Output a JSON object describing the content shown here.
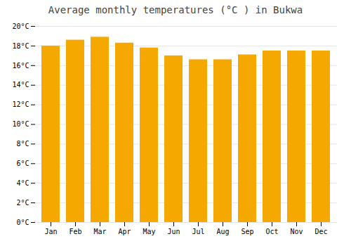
{
  "chart_data": {
    "type": "bar",
    "title": "Average monthly temperatures (°C ) in Bukwa",
    "categories": [
      "Jan",
      "Feb",
      "Mar",
      "Apr",
      "May",
      "Jun",
      "Jul",
      "Aug",
      "Sep",
      "Oct",
      "Nov",
      "Dec"
    ],
    "values": [
      18.0,
      18.6,
      18.9,
      18.3,
      17.8,
      17.0,
      16.6,
      16.6,
      17.1,
      17.5,
      17.5,
      17.5
    ],
    "color": "#F5A800",
    "ylim": [
      0,
      20
    ],
    "yticks": [
      {
        "value": 0,
        "label": "0°C"
      },
      {
        "value": 2,
        "label": "2°C"
      },
      {
        "value": 4,
        "label": "4°C"
      },
      {
        "value": 6,
        "label": "6°C"
      },
      {
        "value": 8,
        "label": "8°C"
      },
      {
        "value": 10,
        "label": "10°C"
      },
      {
        "value": 12,
        "label": "12°C"
      },
      {
        "value": 14,
        "label": "14°C"
      },
      {
        "value": 16,
        "label": "16°C"
      },
      {
        "value": 18,
        "label": "18°C"
      },
      {
        "value": 20,
        "label": "20°C"
      }
    ],
    "grid": true
  }
}
